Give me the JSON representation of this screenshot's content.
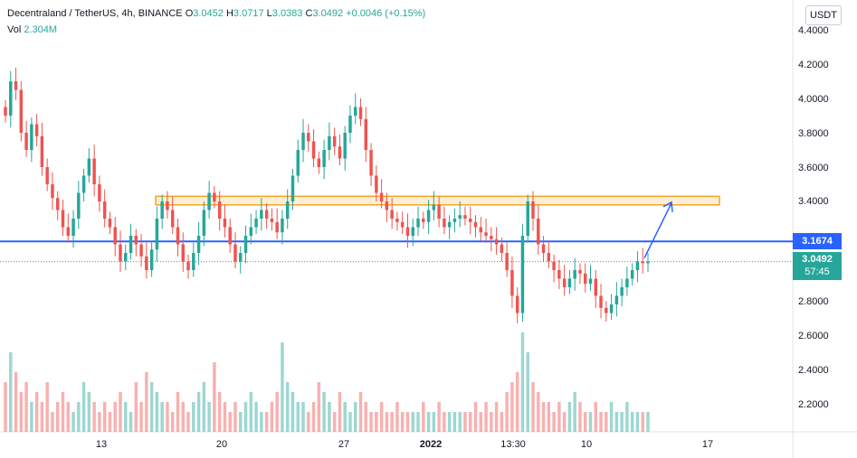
{
  "header": {
    "symbol": "Decentraland / TetherUS, 4h, BINANCE",
    "o_label": "O",
    "o_value": "3.0452",
    "h_label": "H",
    "h_value": "3.0717",
    "l_label": "L",
    "l_value": "3.0383",
    "c_label": "C",
    "c_value": "3.0492",
    "change": "+0.0046 (+0.15%)"
  },
  "volume": {
    "label": "Vol",
    "value": "2.304M"
  },
  "currency_button": "USDT",
  "price_axis": [
    "4.4000",
    "4.2000",
    "4.0000",
    "3.8000",
    "3.6000",
    "3.4000",
    "2.8000",
    "2.6000",
    "2.4000",
    "2.2000"
  ],
  "time_axis": [
    {
      "label": "13",
      "bold": false
    },
    {
      "label": "20",
      "bold": false
    },
    {
      "label": "27",
      "bold": false
    },
    {
      "label": "2022",
      "bold": true
    },
    {
      "label": "13:30",
      "bold": false
    },
    {
      "label": "10",
      "bold": false
    },
    {
      "label": "17",
      "bold": false
    }
  ],
  "horizontal_line": {
    "price": "3.1674",
    "color": "#2962ff"
  },
  "last_price": {
    "price": "3.0492",
    "countdown": "57:45",
    "color": "#26a69a"
  },
  "zone": {
    "low": 3.38,
    "high": 3.43,
    "color": "#f5a623"
  },
  "colors": {
    "up": "#26a69a",
    "down": "#ef5350",
    "arrow": "#2962ff"
  },
  "chart_data": {
    "type": "candlestick",
    "symbol": "MANA/USDT",
    "interval": "4h",
    "ylim": [
      2.0,
      4.5
    ],
    "close": [
      3.9,
      4.1,
      4.05,
      3.8,
      3.7,
      3.85,
      3.78,
      3.6,
      3.5,
      3.42,
      3.35,
      3.25,
      3.2,
      3.3,
      3.45,
      3.55,
      3.65,
      3.5,
      3.4,
      3.3,
      3.25,
      3.15,
      3.05,
      3.1,
      3.2,
      3.15,
      3.08,
      3.0,
      3.12,
      3.3,
      3.4,
      3.35,
      3.25,
      3.15,
      3.05,
      3.0,
      3.1,
      3.2,
      3.35,
      3.45,
      3.4,
      3.3,
      3.25,
      3.15,
      3.05,
      3.1,
      3.2,
      3.25,
      3.3,
      3.35,
      3.3,
      3.28,
      3.22,
      3.3,
      3.4,
      3.55,
      3.7,
      3.8,
      3.75,
      3.65,
      3.6,
      3.7,
      3.78,
      3.72,
      3.65,
      3.8,
      3.9,
      3.95,
      3.88,
      3.7,
      3.55,
      3.45,
      3.4,
      3.35,
      3.3,
      3.28,
      3.25,
      3.2,
      3.25,
      3.3,
      3.28,
      3.35,
      3.38,
      3.3,
      3.25,
      3.28,
      3.3,
      3.32,
      3.3,
      3.28,
      3.25,
      3.22,
      3.2,
      3.18,
      3.15,
      3.1,
      3.0,
      2.85,
      2.75,
      3.2,
      3.4,
      3.3,
      3.15,
      3.1,
      3.05,
      3.0,
      2.95,
      2.9,
      2.95,
      3.0,
      2.98,
      2.92,
      2.95,
      2.85,
      2.78,
      2.75,
      2.8,
      2.85,
      2.9,
      2.95,
      3.0,
      3.05,
      3.04,
      3.05
    ],
    "volume_relative": [
      0.5,
      0.8,
      0.6,
      0.4,
      0.5,
      0.3,
      0.4,
      0.3,
      0.5,
      0.2,
      0.3,
      0.4,
      0.3,
      0.2,
      0.3,
      0.5,
      0.4,
      0.3,
      0.2,
      0.3,
      0.2,
      0.3,
      0.4,
      0.3,
      0.2,
      0.5,
      0.3,
      0.6,
      0.5,
      0.4,
      0.3,
      0.3,
      0.2,
      0.4,
      0.3,
      0.2,
      0.3,
      0.4,
      0.5,
      0.3,
      0.7,
      0.4,
      0.3,
      0.2,
      0.3,
      0.2,
      0.3,
      0.4,
      0.3,
      0.2,
      0.2,
      0.3,
      0.4,
      0.9,
      0.5,
      0.4,
      0.3,
      0.3,
      0.2,
      0.3,
      0.5,
      0.4,
      0.3,
      0.2,
      0.4,
      0.3,
      0.2,
      0.3,
      0.4,
      0.3,
      0.2,
      0.2,
      0.3,
      0.2,
      0.2,
      0.3,
      0.2,
      0.2,
      0.2,
      0.2,
      0.3,
      0.2,
      0.2,
      0.3,
      0.2,
      0.2,
      0.2,
      0.2,
      0.2,
      0.2,
      0.3,
      0.2,
      0.3,
      0.2,
      0.3,
      0.2,
      0.4,
      0.5,
      0.6,
      1.0,
      0.8,
      0.5,
      0.4,
      0.3,
      0.3,
      0.2,
      0.3,
      0.2,
      0.3,
      0.4,
      0.3,
      0.2,
      0.2,
      0.3,
      0.2,
      0.2,
      0.3,
      0.2,
      0.2,
      0.3,
      0.2,
      0.2,
      0.2,
      0.2
    ],
    "projection": {
      "from": 3.07,
      "to": 3.38
    }
  }
}
